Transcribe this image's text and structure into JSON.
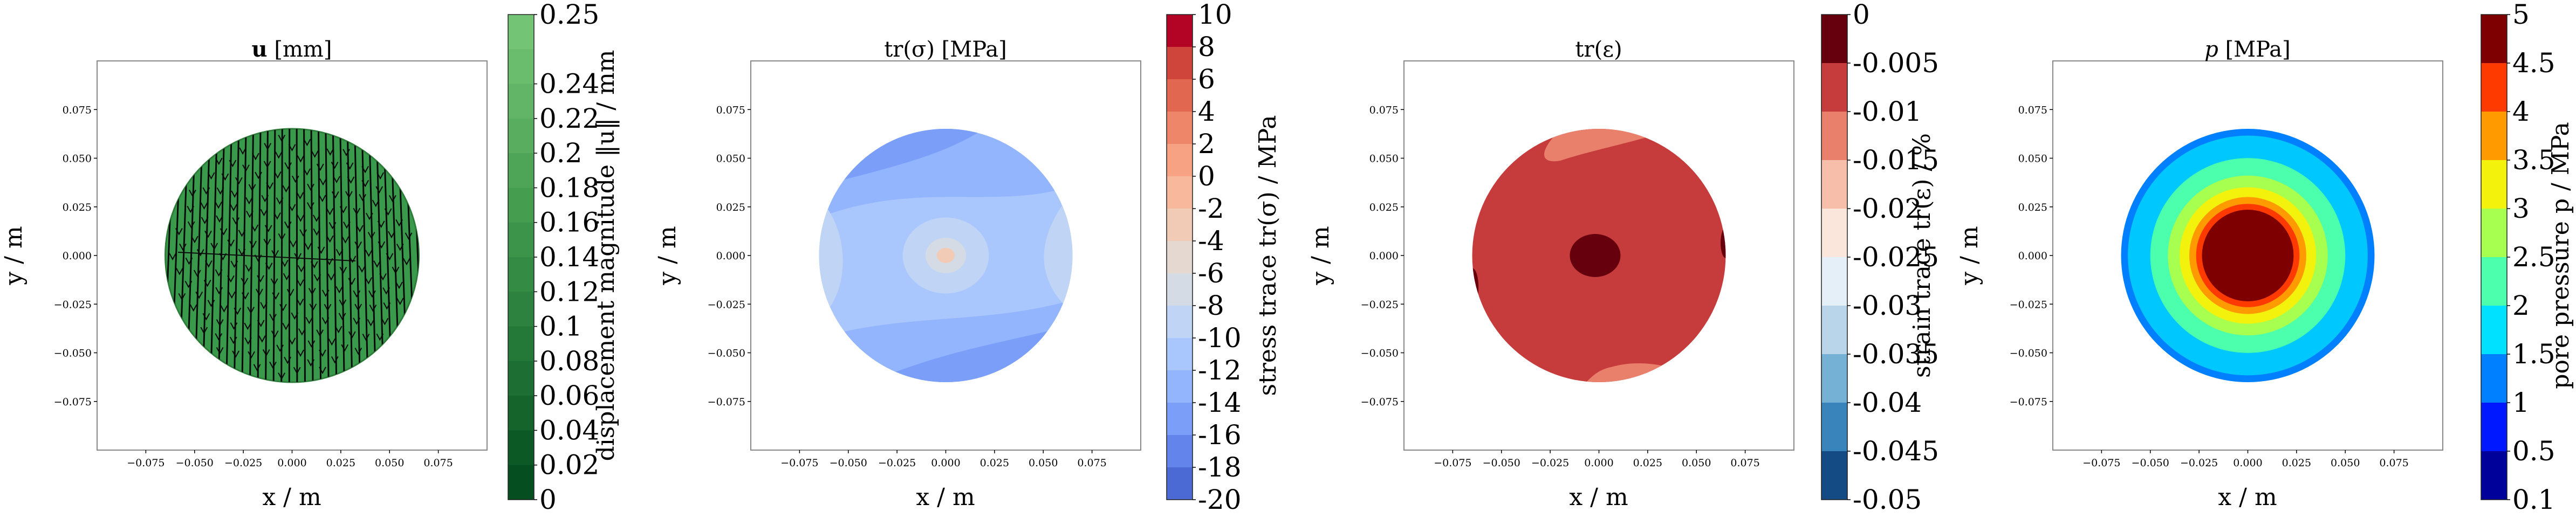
{
  "chart_data": [
    {
      "type": "contour",
      "title_bold": "u",
      "title_rest": " [mm]",
      "xlabel": "x / m",
      "ylabel": "y / m",
      "xticks": [
        "−0.075",
        "−0.050",
        "−0.025",
        "0.000",
        "0.025",
        "0.050",
        "0.075"
      ],
      "yticks": [
        "0.075",
        "0.050",
        "0.025",
        "0.000",
        "−0.025",
        "−0.050",
        "−0.075"
      ],
      "tick_values": [
        -0.075,
        -0.05,
        -0.025,
        0,
        0.025,
        0.05,
        0.075
      ],
      "xlim": [
        -0.1,
        0.1
      ],
      "ylim": [
        -0.1,
        0.1
      ],
      "domain_radius": 0.065,
      "colorbar": {
        "label": "displacement magnitude ‖u‖ / mm",
        "ticks": [
          "0",
          "0.02",
          "0.04",
          "0.06",
          "0.08",
          "0.1",
          "0.12",
          "0.14",
          "0.16",
          "0.18",
          "0.2",
          "0.22",
          "0.24",
          "0.25"
        ],
        "colors": [
          "#74c476",
          "#6bbd6e",
          "#62b566",
          "#58ad5e",
          "#4ea557",
          "#459d50",
          "#3c944a",
          "#348b44",
          "#2c823e",
          "#247838",
          "#1c6e32",
          "#14642c",
          "#0c5926",
          "#054e20"
        ]
      },
      "fill_color": "#3a9a4c",
      "arrows": "dense vertical displacement arrows over disc"
    },
    {
      "type": "contour",
      "title": "tr(σ) [MPa]",
      "xlabel": "x / m",
      "ylabel": "y / m",
      "xticks": [
        "−0.075",
        "−0.050",
        "−0.025",
        "0.000",
        "0.025",
        "0.050",
        "0.075"
      ],
      "yticks": [
        "0.075",
        "0.050",
        "0.025",
        "0.000",
        "−0.025",
        "−0.050",
        "−0.075"
      ],
      "tick_values": [
        -0.075,
        -0.05,
        -0.025,
        0,
        0.025,
        0.05,
        0.075
      ],
      "xlim": [
        -0.1,
        0.1
      ],
      "ylim": [
        -0.1,
        0.1
      ],
      "domain_radius": 0.065,
      "colorbar": {
        "label": "stress trace tr(σ) / MPa",
        "ticks": [
          "10",
          "8",
          "6",
          "4",
          "2",
          "0",
          "-2",
          "-4",
          "-6",
          "-8",
          "-10",
          "-12",
          "-14",
          "-16",
          "-18",
          "-20"
        ],
        "colors": [
          "#b40426",
          "#cf453c",
          "#e16751",
          "#ee8669",
          "#f6a283",
          "#f7b89c",
          "#f2cbb7",
          "#e5d8d1",
          "#d5dbe5",
          "#c0d4f5",
          "#aac7fd",
          "#93b5fe",
          "#7b9ff9",
          "#6384eb",
          "#4b6ad3"
        ]
      },
      "regions": [
        {
          "level": "-10",
          "color": "#aac7fd"
        },
        {
          "level": "-12",
          "color": "#93b5fe"
        },
        {
          "level": "-14",
          "color": "#7b9ff9"
        },
        {
          "level": "-8",
          "color": "#c0d4f5"
        },
        {
          "level": "-6",
          "color": "#d5dbe5"
        },
        {
          "level": "0",
          "color": "#f2cbb7"
        }
      ]
    },
    {
      "type": "contour",
      "title": "tr(ε)",
      "xlabel": "x / m",
      "ylabel": "y / m",
      "xticks": [
        "−0.075",
        "−0.050",
        "−0.025",
        "0.000",
        "0.025",
        "0.050",
        "0.075"
      ],
      "yticks": [
        "0.075",
        "0.050",
        "0.025",
        "0.000",
        "−0.025",
        "−0.050",
        "−0.075"
      ],
      "tick_values": [
        -0.075,
        -0.05,
        -0.025,
        0,
        0.025,
        0.05,
        0.075
      ],
      "xlim": [
        -0.1,
        0.1
      ],
      "ylim": [
        -0.1,
        0.1
      ],
      "domain_radius": 0.065,
      "colorbar": {
        "label": "strain trace tr(ε) / %",
        "ticks": [
          "0",
          "-0.005",
          "-0.01",
          "-0.015",
          "-0.02",
          "-0.025",
          "-0.03",
          "-0.035",
          "-0.04",
          "-0.045",
          "-0.05"
        ],
        "colors": [
          "#67000d",
          "#c63b3b",
          "#e9806b",
          "#f7bfa9",
          "#fbe6dc",
          "#e5eff8",
          "#b8d5ea",
          "#75b1d5",
          "#3a84bc",
          "#144b85"
        ]
      },
      "regions": [
        {
          "level": "-0.005",
          "color": "#c63b3b"
        },
        {
          "level": "-0.01",
          "color": "#e9806b"
        },
        {
          "level": "0",
          "color": "#67000d"
        }
      ]
    },
    {
      "type": "contour",
      "title_italic": "p",
      "title_rest": " [MPa]",
      "xlabel": "x / m",
      "ylabel": "y / m",
      "xticks": [
        "−0.075",
        "−0.050",
        "−0.025",
        "0.000",
        "0.025",
        "0.050",
        "0.075"
      ],
      "yticks": [
        "0.075",
        "0.050",
        "0.025",
        "0.000",
        "−0.025",
        "−0.050",
        "−0.075"
      ],
      "tick_values": [
        -0.075,
        -0.05,
        -0.025,
        0,
        0.025,
        0.05,
        0.075
      ],
      "xlim": [
        -0.1,
        0.1
      ],
      "ylim": [
        -0.1,
        0.1
      ],
      "domain_radius": 0.065,
      "colorbar": {
        "label": "pore pressure p / MPa",
        "ticks": [
          "5",
          "4.5",
          "4",
          "3.5",
          "3",
          "2.5",
          "2",
          "1.5",
          "1",
          "0.5",
          "0.1"
        ],
        "colors": [
          "#7f0000",
          "#ff3a00",
          "#ff9b00",
          "#f2f20c",
          "#a7ff4f",
          "#4bffac",
          "#00e0ff",
          "#0080ff",
          "#0018ff",
          "#00009b"
        ]
      },
      "rings": [
        {
          "r": 0.065,
          "color": "#0080ff"
        },
        {
          "r": 0.0615,
          "color": "#00c8ff"
        },
        {
          "r": 0.05,
          "color": "#4bffac"
        },
        {
          "r": 0.041,
          "color": "#a7ff4f"
        },
        {
          "r": 0.035,
          "color": "#f2f20c"
        },
        {
          "r": 0.03,
          "color": "#ff9b00"
        },
        {
          "r": 0.0265,
          "color": "#ff3a00"
        },
        {
          "r": 0.0235,
          "color": "#7f0000"
        }
      ]
    }
  ]
}
